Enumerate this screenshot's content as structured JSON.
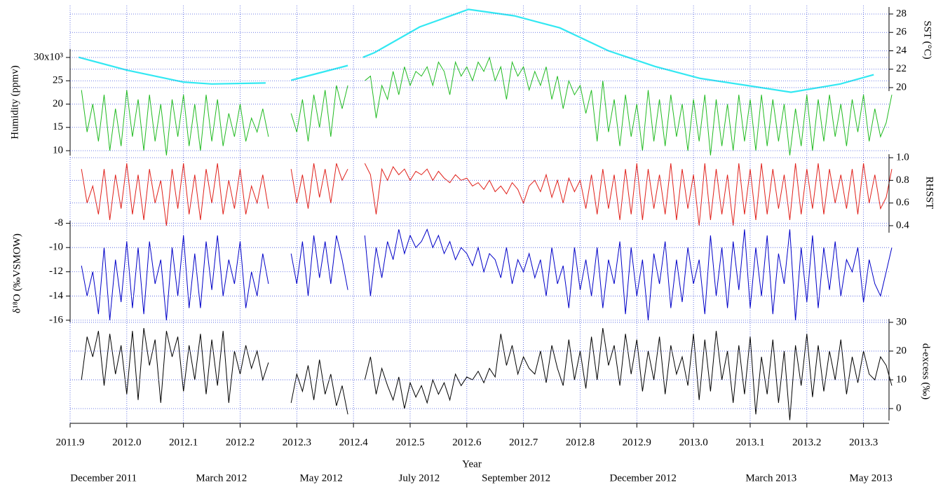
{
  "chart_data": {
    "type": "line",
    "xlabel": "Year",
    "grid": true,
    "xlim": [
      2011.9,
      2013.345
    ],
    "xticks": [
      2011.9,
      {
        "value": 2012,
        "label": "2012.0"
      },
      2012.1,
      2012.2,
      2012.3,
      2012.4,
      2012.5,
      2012.6,
      2012.7,
      2012.8,
      2012.9,
      {
        "value": 2013,
        "label": "2013.0"
      },
      2013.1,
      2013.2,
      2013.3
    ],
    "x2ticks": [
      {
        "value": 2011.959,
        "label": "December 2011"
      },
      {
        "value": 2012.167,
        "label": "March 2012"
      },
      {
        "value": 2012.343,
        "label": "May 2012"
      },
      {
        "value": 2012.516,
        "label": "July 2012"
      },
      {
        "value": 2012.687,
        "label": "September 2012"
      },
      {
        "value": 2012.911,
        "label": "December 2012"
      },
      {
        "value": 2013.137,
        "label": "March 2013"
      },
      {
        "value": 2013.313,
        "label": "May 2013"
      }
    ],
    "x": [
      2011.92,
      2011.93,
      2011.94,
      2011.95,
      2011.96,
      2011.97,
      2011.98,
      2011.99,
      2012.0,
      2012.01,
      2012.02,
      2012.03,
      2012.04,
      2012.05,
      2012.06,
      2012.07,
      2012.08,
      2012.09,
      2012.1,
      2012.11,
      2012.12,
      2012.13,
      2012.14,
      2012.15,
      2012.16,
      2012.17,
      2012.18,
      2012.19,
      2012.2,
      2012.21,
      2012.22,
      2012.23,
      2012.24,
      2012.25,
      2012.26,
      2012.27,
      2012.28,
      2012.29,
      2012.3,
      2012.31,
      2012.32,
      2012.33,
      2012.34,
      2012.35,
      2012.36,
      2012.37,
      2012.38,
      2012.39,
      2012.4,
      2012.41,
      2012.42,
      2012.43,
      2012.44,
      2012.45,
      2012.46,
      2012.47,
      2012.48,
      2012.49,
      2012.5,
      2012.51,
      2012.52,
      2012.53,
      2012.54,
      2012.55,
      2012.56,
      2012.57,
      2012.58,
      2012.59,
      2012.6,
      2012.61,
      2012.62,
      2012.63,
      2012.64,
      2012.65,
      2012.66,
      2012.67,
      2012.68,
      2012.69,
      2012.7,
      2012.71,
      2012.72,
      2012.73,
      2012.74,
      2012.75,
      2012.76,
      2012.77,
      2012.78,
      2012.79,
      2012.8,
      2012.81,
      2012.82,
      2012.83,
      2012.84,
      2012.85,
      2012.86,
      2012.87,
      2012.88,
      2012.89,
      2012.9,
      2012.91,
      2012.92,
      2012.93,
      2012.94,
      2012.95,
      2012.96,
      2012.97,
      2012.98,
      2012.99,
      2013.0,
      2013.01,
      2013.02,
      2013.03,
      2013.04,
      2013.05,
      2013.06,
      2013.07,
      2013.08,
      2013.09,
      2013.1,
      2013.11,
      2013.12,
      2013.13,
      2013.14,
      2013.15,
      2013.16,
      2013.17,
      2013.18,
      2013.19,
      2013.2,
      2013.21,
      2013.22,
      2013.23,
      2013.24,
      2013.25,
      2013.26,
      2013.27,
      2013.28,
      2013.29,
      2013.3,
      2013.31,
      2013.32,
      2013.33,
      2013.34,
      2013.35
    ],
    "series": [
      {
        "ylabel": "SST (°C)",
        "side": "right",
        "color": "#33e8f2",
        "ylim": [
          19.62,
          28.76
        ],
        "yticks": [
          20,
          22,
          24,
          26,
          28
        ],
        "x": [
          2011.915,
          2012.0,
          2012.1,
          2012.15,
          2012.245,
          2012.27,
          2012.29,
          2012.39,
          2012.4,
          2012.417,
          2012.437,
          2012.517,
          2012.603,
          2012.684,
          2012.764,
          2012.85,
          2012.932,
          2013.012,
          2013.098,
          2013.172,
          2013.259,
          2013.318
        ],
        "values": [
          23.3,
          21.9,
          20.6,
          20.4,
          20.5,
          null,
          20.8,
          22.4,
          null,
          23.3,
          23.8,
          26.6,
          28.5,
          27.8,
          26.5,
          24.0,
          22.3,
          21.0,
          20.2,
          19.5,
          20.4,
          21.4
        ]
      },
      {
        "ylabel": "Humidity (ppmv)",
        "side": "left",
        "color": "#22bb22",
        "ylim": [
          8.95,
          31.8
        ],
        "yticks": [
          10,
          15,
          20,
          25,
          {
            "value": 30,
            "label": "30x10³"
          }
        ],
        "values": [
          23,
          14,
          20,
          12,
          22,
          10,
          19,
          11,
          23,
          13,
          21,
          10,
          22,
          12,
          20,
          9,
          21,
          13,
          22,
          11,
          20,
          10,
          22,
          12,
          21,
          11,
          18,
          13,
          20,
          12,
          17,
          14,
          19,
          13,
          null,
          null,
          null,
          18,
          14,
          21,
          12,
          22,
          15,
          23,
          13,
          24,
          19,
          24,
          null,
          null,
          25,
          26,
          17,
          24,
          21,
          27,
          22,
          28,
          24,
          27,
          26,
          28,
          24,
          29,
          27,
          22,
          29,
          26,
          28,
          25,
          29,
          27,
          30,
          25,
          28,
          21,
          29,
          26,
          28,
          23,
          27,
          24,
          28,
          21,
          26,
          19,
          25,
          22,
          24,
          18,
          23,
          12,
          25,
          14,
          21,
          11,
          22,
          13,
          20,
          10,
          23,
          12,
          21,
          11,
          22,
          13,
          20,
          10,
          21,
          12,
          22,
          9,
          21,
          11,
          20,
          10,
          22,
          12,
          21,
          10,
          22,
          11,
          21,
          12,
          20,
          9,
          19,
          11,
          22,
          10,
          21,
          12,
          22,
          13,
          20,
          11,
          21,
          14,
          22,
          12,
          19,
          13,
          16,
          22
        ]
      },
      {
        "ylabel": "RHSST",
        "side": "right",
        "color": "#e0201a",
        "ylim": [
          0.338,
          1.031
        ],
        "yticks": [
          0.4,
          0.6,
          0.8,
          {
            "value": 1,
            "label": "1.0"
          }
        ],
        "values": [
          0.9,
          0.6,
          0.75,
          0.5,
          0.9,
          0.45,
          0.85,
          0.55,
          0.95,
          0.5,
          0.85,
          0.45,
          0.9,
          0.6,
          0.8,
          0.4,
          0.9,
          0.55,
          0.95,
          0.5,
          0.85,
          0.45,
          0.9,
          0.6,
          0.95,
          0.5,
          0.8,
          0.55,
          0.9,
          0.5,
          0.75,
          0.6,
          0.85,
          0.55,
          null,
          null,
          null,
          0.9,
          0.6,
          0.85,
          0.55,
          0.95,
          0.65,
          0.9,
          0.6,
          0.95,
          0.8,
          0.9,
          null,
          null,
          0.95,
          0.85,
          0.5,
          0.9,
          0.8,
          0.92,
          0.85,
          0.9,
          0.8,
          0.88,
          0.85,
          0.9,
          0.8,
          0.88,
          0.82,
          0.78,
          0.85,
          0.8,
          0.82,
          0.75,
          0.78,
          0.72,
          0.8,
          0.7,
          0.75,
          0.68,
          0.78,
          0.72,
          0.6,
          0.75,
          0.8,
          0.7,
          0.85,
          0.65,
          0.8,
          0.6,
          0.82,
          0.7,
          0.8,
          0.55,
          0.85,
          0.5,
          0.9,
          0.55,
          0.85,
          0.45,
          0.9,
          0.5,
          0.95,
          0.45,
          0.9,
          0.55,
          0.85,
          0.5,
          0.95,
          0.45,
          0.9,
          0.55,
          0.85,
          0.4,
          0.95,
          0.45,
          0.9,
          0.5,
          0.85,
          0.4,
          0.95,
          0.5,
          0.9,
          0.45,
          0.95,
          0.5,
          0.9,
          0.55,
          0.85,
          0.45,
          0.95,
          0.5,
          0.9,
          0.55,
          0.95,
          0.5,
          0.9,
          0.6,
          0.85,
          0.55,
          0.9,
          0.5,
          0.95,
          0.6,
          0.85,
          0.55,
          0.65,
          0.9
        ]
      },
      {
        "ylabel": "δ¹⁸O (‰VSMOW)",
        "side": "left",
        "color": "#0000c8",
        "ylim": [
          -16.18,
          -7.79
        ],
        "yticks": [
          -16,
          -14,
          -12,
          -10,
          -8
        ],
        "values": [
          -11.5,
          -14,
          -12,
          -15.5,
          -10,
          -16,
          -11,
          -14.5,
          -9.5,
          -15,
          -10,
          -15.5,
          -9.5,
          -13,
          -11,
          -16,
          -10,
          -14,
          -9,
          -15,
          -10.5,
          -15,
          -9.5,
          -13.5,
          -9,
          -14,
          -11,
          -13,
          -9.5,
          -15,
          -12,
          -14,
          -10.5,
          -13,
          null,
          null,
          null,
          -10.5,
          -13,
          -9.5,
          -14,
          -9,
          -12.5,
          -9.5,
          -13,
          -9,
          -11,
          -13.5,
          null,
          null,
          -9,
          -14,
          -10,
          -12.5,
          -9.5,
          -11,
          -8.5,
          -10.5,
          -9,
          -10,
          -9.5,
          -8.5,
          -10,
          -9,
          -10.5,
          -9.5,
          -11,
          -10,
          -10.5,
          -11.5,
          -10,
          -12,
          -10.5,
          -11,
          -12.5,
          -10,
          -13,
          -11,
          -12,
          -10.5,
          -12.5,
          -11,
          -14,
          -10,
          -13,
          -11.5,
          -15,
          -10,
          -13.5,
          -11,
          -14,
          -10,
          -15,
          -11,
          -13,
          -9.5,
          -15.5,
          -10,
          -14,
          -11,
          -16,
          -10.5,
          -13,
          -9.5,
          -15,
          -11,
          -14.5,
          -10,
          -13,
          -11,
          -15.5,
          -9,
          -14,
          -10,
          -15,
          -9.5,
          -13.5,
          -8.5,
          -15,
          -10,
          -14,
          -9,
          -15.5,
          -10.5,
          -13,
          -8.5,
          -16,
          -10,
          -14.5,
          -9,
          -15,
          -10,
          -13.5,
          -9.5,
          -14,
          -11,
          -12,
          -10,
          -14.5,
          -11,
          -13,
          -14,
          -12,
          -10
        ]
      },
      {
        "ylabel": "d-excess (‰)",
        "side": "right",
        "color": "#000000",
        "ylim": [
          -4.15,
          31.2
        ],
        "yticks": [
          0,
          10,
          20,
          30
        ],
        "values": [
          10,
          25,
          18,
          27,
          8,
          26,
          12,
          22,
          5,
          27,
          3,
          28,
          15,
          24,
          2,
          27,
          18,
          25,
          6,
          22,
          10,
          26,
          5,
          24,
          8,
          27,
          2,
          20,
          12,
          22,
          14,
          20,
          10,
          16,
          null,
          null,
          null,
          2,
          12,
          6,
          15,
          3,
          17,
          5,
          12,
          1,
          8,
          -2,
          null,
          null,
          10,
          18,
          5,
          14,
          8,
          3,
          11,
          0,
          9,
          4,
          8,
          2,
          10,
          5,
          9,
          3,
          12,
          8,
          11,
          10,
          13,
          9,
          14,
          11,
          26,
          15,
          22,
          12,
          18,
          14,
          12,
          20,
          9,
          22,
          14,
          8,
          24,
          10,
          20,
          7,
          25,
          10,
          28,
          15,
          22,
          8,
          26,
          12,
          24,
          6,
          20,
          10,
          25,
          5,
          22,
          12,
          18,
          8,
          26,
          3,
          24,
          6,
          27,
          10,
          20,
          2,
          22,
          5,
          25,
          -2,
          18,
          5,
          24,
          2,
          20,
          -4,
          22,
          8,
          26,
          4,
          22,
          6,
          20,
          10,
          24,
          5,
          18,
          9,
          20,
          12,
          10,
          18,
          15,
          8
        ]
      }
    ]
  }
}
